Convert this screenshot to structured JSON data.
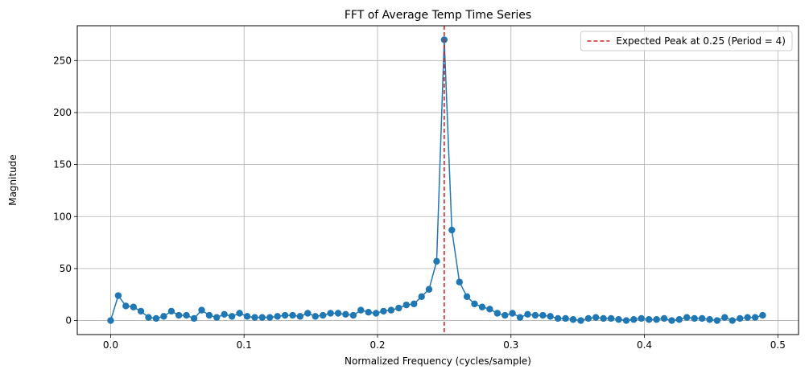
{
  "chart_data": {
    "type": "line",
    "title": "FFT of Average Temp Time Series",
    "xlabel": "Normalized Frequency (cycles/sample)",
    "ylabel": "Magnitude",
    "xlim": [
      -0.025,
      0.5155
    ],
    "ylim": [
      -13.5,
      283.5
    ],
    "xticks": [
      0.0,
      0.1,
      0.2,
      0.3,
      0.4,
      0.5
    ],
    "xtick_labels": [
      "0.0",
      "0.1",
      "0.2",
      "0.3",
      "0.4",
      "0.5"
    ],
    "yticks": [
      0,
      50,
      100,
      150,
      200,
      250
    ],
    "ytick_labels": [
      "0",
      "50",
      "100",
      "150",
      "200",
      "250"
    ],
    "grid": true,
    "legend_position": "top-right",
    "series": [
      {
        "color": "#1f77b4",
        "marker": "circle",
        "x": [
          0.0,
          0.0057,
          0.0114,
          0.0171,
          0.0227,
          0.0284,
          0.0341,
          0.0398,
          0.0455,
          0.0511,
          0.0568,
          0.0625,
          0.0682,
          0.0739,
          0.0795,
          0.0852,
          0.0909,
          0.0966,
          0.1023,
          0.108,
          0.1136,
          0.1193,
          0.125,
          0.1307,
          0.1364,
          0.142,
          0.1477,
          0.1534,
          0.1591,
          0.1648,
          0.1705,
          0.1761,
          0.1818,
          0.1875,
          0.1932,
          0.1989,
          0.2045,
          0.2102,
          0.2159,
          0.2216,
          0.2273,
          0.233,
          0.2386,
          0.2443,
          0.25,
          0.2557,
          0.2614,
          0.267,
          0.2727,
          0.2784,
          0.2841,
          0.2898,
          0.2955,
          0.3011,
          0.3068,
          0.3125,
          0.3182,
          0.3239,
          0.3295,
          0.3352,
          0.3409,
          0.3466,
          0.3523,
          0.358,
          0.3636,
          0.3693,
          0.375,
          0.3807,
          0.3864,
          0.392,
          0.3977,
          0.4034,
          0.4091,
          0.4148,
          0.4205,
          0.4261,
          0.4318,
          0.4375,
          0.4432,
          0.4489,
          0.4545,
          0.4602,
          0.4659,
          0.4716,
          0.4773,
          0.483,
          0.4886
        ],
        "y": [
          0,
          24,
          14,
          13,
          9,
          3,
          2,
          4,
          9,
          5,
          5,
          2,
          10,
          5,
          3,
          6,
          4,
          7,
          4,
          3,
          3,
          3,
          4,
          5,
          5,
          4,
          7,
          4,
          5,
          7,
          7,
          6,
          5,
          10,
          8,
          7,
          9,
          10,
          12,
          15,
          16,
          23,
          30,
          57,
          270,
          87,
          37,
          23,
          16,
          13,
          11,
          7,
          5,
          7,
          3,
          6,
          5,
          5,
          4,
          2,
          2,
          1,
          0,
          2,
          3,
          2,
          2,
          1,
          0,
          1,
          2,
          1,
          1,
          2,
          0,
          1,
          3,
          2,
          2,
          1,
          0,
          3,
          0,
          2,
          3,
          3,
          5
        ]
      }
    ],
    "vlines": [
      {
        "x": 0.25,
        "color": "#d62728",
        "style": "dashed",
        "label": "Expected Peak at 0.25 (Period = 4)"
      }
    ]
  }
}
